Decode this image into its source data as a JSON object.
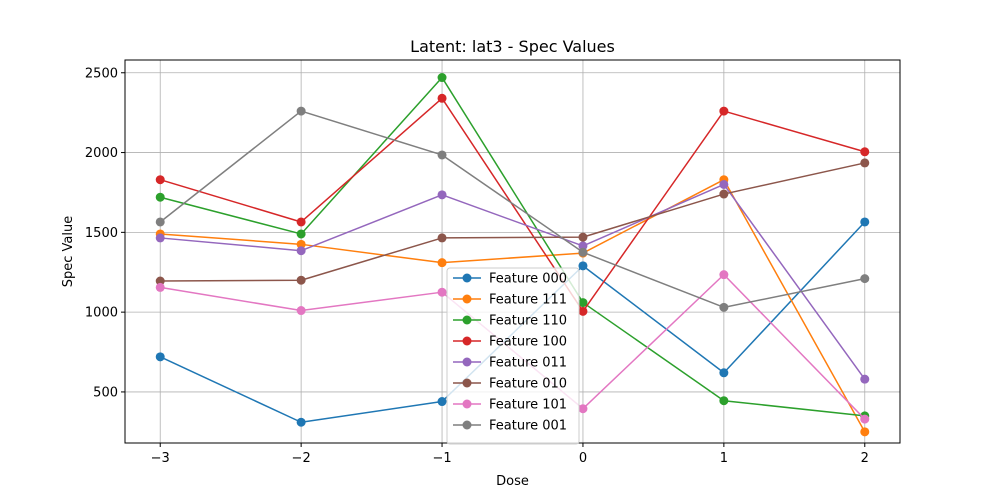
{
  "chart_data": {
    "type": "line",
    "title": "Latent: lat3 - Spec Values",
    "xlabel": "Dose",
    "ylabel": "Spec Value",
    "x": [
      -3,
      -2,
      -1,
      0,
      1,
      2
    ],
    "x_tick_labels": [
      "−3",
      "−2",
      "−1",
      "0",
      "1",
      "2"
    ],
    "y_ticks": [
      500,
      1000,
      1500,
      2000,
      2500
    ],
    "y_tick_labels": [
      "500",
      "1000",
      "1500",
      "2000",
      "2500"
    ],
    "xlim": [
      -3.25,
      2.25
    ],
    "ylim": [
      180,
      2580
    ],
    "grid": true,
    "legend_position": "bottom-center",
    "series": [
      {
        "name": "Feature 000",
        "color": "#1f77b4",
        "values": [
          720,
          310,
          440,
          1290,
          620,
          1565
        ]
      },
      {
        "name": "Feature 111",
        "color": "#ff7f0e",
        "values": [
          1490,
          1425,
          1310,
          1370,
          1830,
          250
        ]
      },
      {
        "name": "Feature 110",
        "color": "#2ca02c",
        "values": [
          1720,
          1490,
          2470,
          1060,
          445,
          350
        ]
      },
      {
        "name": "Feature 100",
        "color": "#d62728",
        "values": [
          1830,
          1565,
          2340,
          1005,
          2260,
          2005
        ]
      },
      {
        "name": "Feature 011",
        "color": "#9467bd",
        "values": [
          1465,
          1385,
          1735,
          1415,
          1800,
          580
        ]
      },
      {
        "name": "Feature 010",
        "color": "#8c564b",
        "values": [
          1195,
          1200,
          1465,
          1470,
          1740,
          1935
        ]
      },
      {
        "name": "Feature 101",
        "color": "#e377c2",
        "values": [
          1155,
          1010,
          1125,
          395,
          1235,
          330
        ]
      },
      {
        "name": "Feature 001",
        "color": "#7f7f7f",
        "values": [
          1565,
          2260,
          1985,
          1375,
          1030,
          1210
        ]
      }
    ]
  }
}
